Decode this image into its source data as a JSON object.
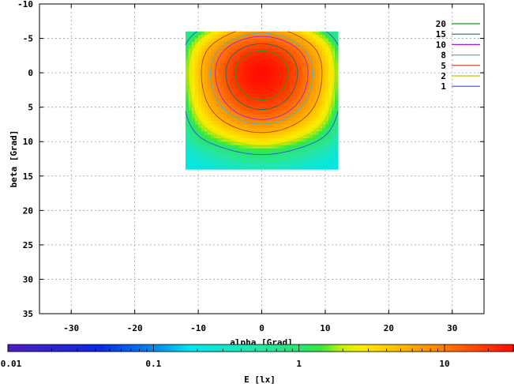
{
  "chart_data": {
    "type": "heatmap",
    "xlabel": "alpha [Grad]",
    "ylabel": "beta [Grad]",
    "xlim": [
      -35,
      35
    ],
    "ylim": [
      -10,
      35
    ],
    "y_axis_inverted": true,
    "x_ticks": [
      -30,
      -20,
      -10,
      0,
      10,
      20,
      30
    ],
    "y_ticks": [
      -10,
      -5,
      0,
      5,
      10,
      15,
      20,
      25,
      30,
      35
    ],
    "grid": true,
    "data_extent": {
      "alpha": [
        -12,
        12
      ],
      "beta": [
        -6,
        14
      ]
    },
    "peak": {
      "alpha": 0,
      "beta": 0
    },
    "contour_legend_placement": "top-right",
    "contour_levels": [
      {
        "label": "20",
        "value": 20,
        "color": "#1a9a1a"
      },
      {
        "label": "15",
        "value": 15,
        "color": "#1f6b6b"
      },
      {
        "label": "10",
        "value": 10,
        "color": "#a020f0"
      },
      {
        "label": "8",
        "value": 8,
        "color": "#30c0d0"
      },
      {
        "label": "5",
        "value": 5,
        "color": "#b04020"
      },
      {
        "label": "2",
        "value": 2,
        "color": "#c8c800"
      },
      {
        "label": "1",
        "value": 1,
        "color": "#3050e0"
      }
    ],
    "colorbar": {
      "label": "E [lx]",
      "scale": "log",
      "range": [
        0.01,
        30
      ],
      "tick_labels": [
        "0.01",
        "0.1",
        "1",
        "10"
      ],
      "tick_values": [
        0.01,
        0.1,
        1,
        10
      ]
    }
  }
}
